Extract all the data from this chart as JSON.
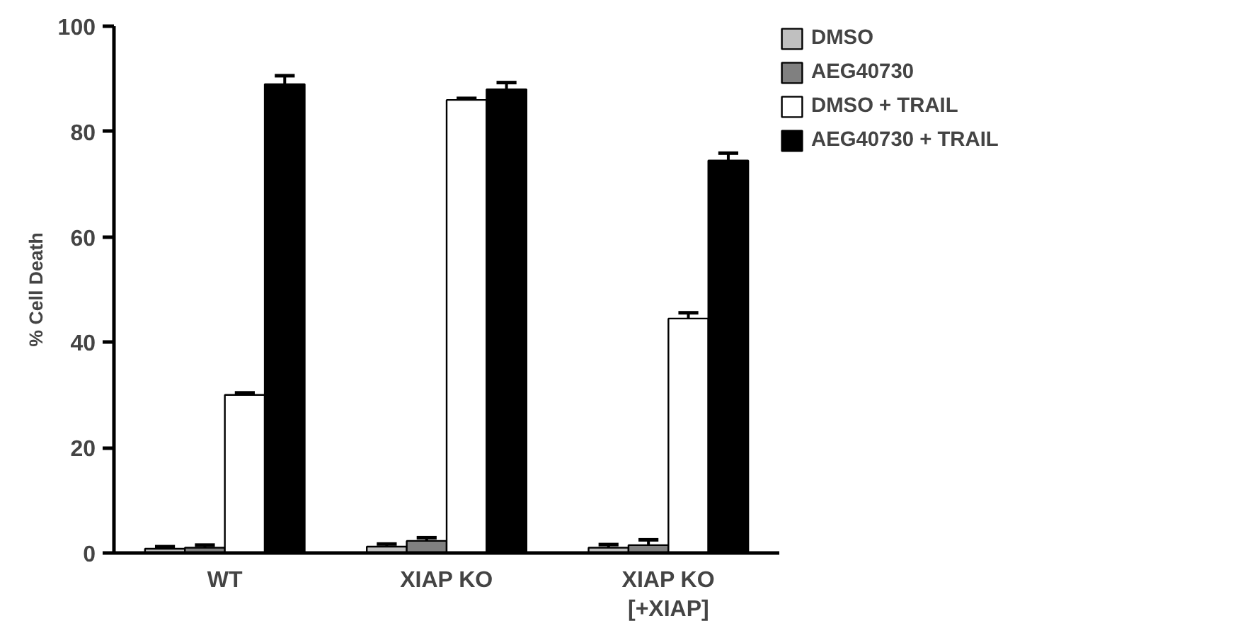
{
  "chart_data": {
    "type": "bar",
    "ylabel": "% Cell Death",
    "categories": [
      "WT",
      "XIAP KO",
      "XIAP KO\n[+XIAP]"
    ],
    "ylim": [
      0,
      100
    ],
    "yticks": [
      0,
      20,
      40,
      60,
      80,
      100
    ],
    "grid": false,
    "legend": "top right",
    "series": [
      {
        "name": "DMSO",
        "color": "#c0c0c0",
        "values": [
          0.8,
          1.2,
          1.0
        ],
        "errors": [
          [
            0.8,
            1.2
          ],
          [
            1.2,
            1.7
          ],
          [
            1.0,
            1.6
          ]
        ]
      },
      {
        "name": "AEG40730",
        "color": "#808080",
        "values": [
          1.0,
          2.3,
          1.5
        ],
        "errors": [
          [
            1.0,
            1.5
          ],
          [
            2.3,
            2.9
          ],
          [
            1.5,
            2.5
          ]
        ]
      },
      {
        "name": "DMSO + TRAIL",
        "color": "#ffffff",
        "values": [
          30,
          86,
          44.5
        ],
        "errors": [
          [
            30,
            30.4
          ],
          [
            86,
            86.3
          ],
          [
            44.5,
            45.6
          ]
        ]
      },
      {
        "name": "AEG40730 + TRAIL",
        "color": "#000000",
        "values": [
          89,
          88,
          74.5
        ],
        "errors": [
          [
            89,
            90.6
          ],
          [
            88,
            89.3
          ],
          [
            74.5,
            75.9
          ]
        ]
      }
    ]
  }
}
